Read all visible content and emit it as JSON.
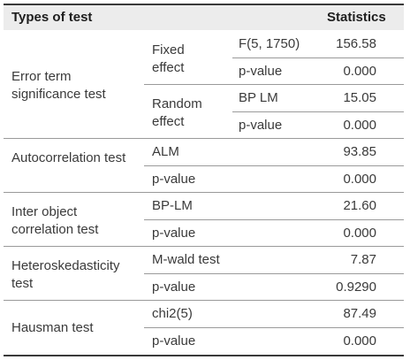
{
  "header": {
    "col1": "Types of test",
    "col2": "Statistics"
  },
  "groups": [
    {
      "name": "Error term significance test"
    },
    {
      "name": "Autocorrelation test"
    },
    {
      "name": "Inter object correlation test"
    },
    {
      "name": "Heteroskedasticity test"
    },
    {
      "name": "Hausman test"
    }
  ],
  "subgroups": [
    {
      "name": "Fixed effect"
    },
    {
      "name": "Random effect"
    }
  ],
  "rows": [
    {
      "stat": "F(5, 1750)",
      "value": "156.58"
    },
    {
      "stat": "p-value",
      "value": "0.000"
    },
    {
      "stat": "BP LM",
      "value": "15.05"
    },
    {
      "stat": "p-value",
      "value": "0.000"
    },
    {
      "stat": "ALM",
      "value": "93.85"
    },
    {
      "stat": "p-value",
      "value": "0.000"
    },
    {
      "stat": "BP-LM",
      "value": "21.60"
    },
    {
      "stat": "p-value",
      "value": "0.000"
    },
    {
      "stat": "M-wald test",
      "value": "7.87"
    },
    {
      "stat": "p-value",
      "value": "0.9290"
    },
    {
      "stat": "chi2(5)",
      "value": "87.49"
    },
    {
      "stat": "p-value",
      "value": "0.000"
    }
  ]
}
